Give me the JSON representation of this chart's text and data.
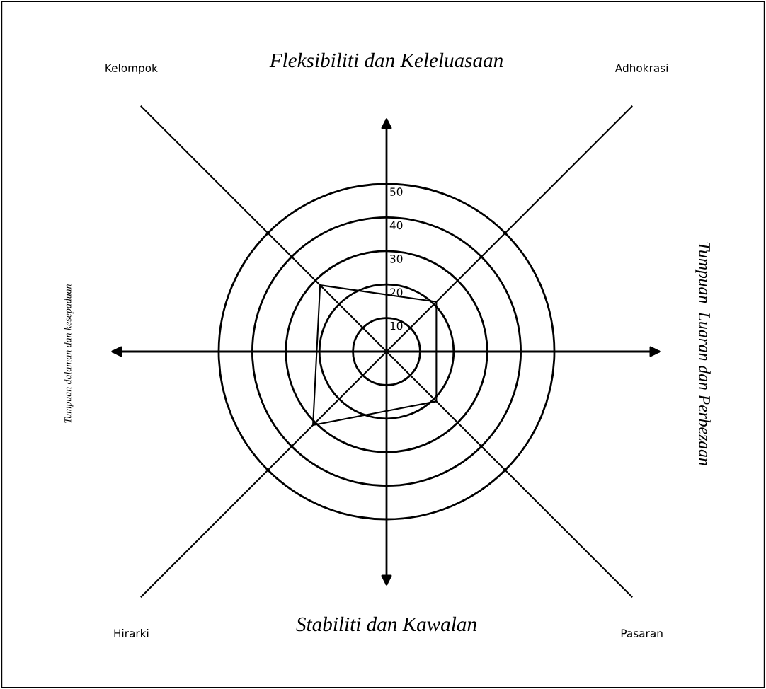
{
  "chart_data": {
    "type": "radar",
    "categories": [
      "Adhokrasi",
      "Pasaran",
      "Hirarki",
      "Kelompok"
    ],
    "series": [
      {
        "color": "#000000",
        "values": [
          21,
          21,
          31,
          28
        ]
      }
    ],
    "ylim": [
      0,
      50
    ],
    "yticks": [
      10,
      20,
      30,
      40,
      50
    ],
    "grid": true,
    "marker": "none",
    "line_style": "solid",
    "annotations": [
      "Fleksibiliti dan Keleluasaan",
      "Stabiliti dan Kawalan",
      "Tumpuan  Luaran dan Perbezaan",
      "Tumpuan dalaman dan kesepaduan"
    ]
  }
}
